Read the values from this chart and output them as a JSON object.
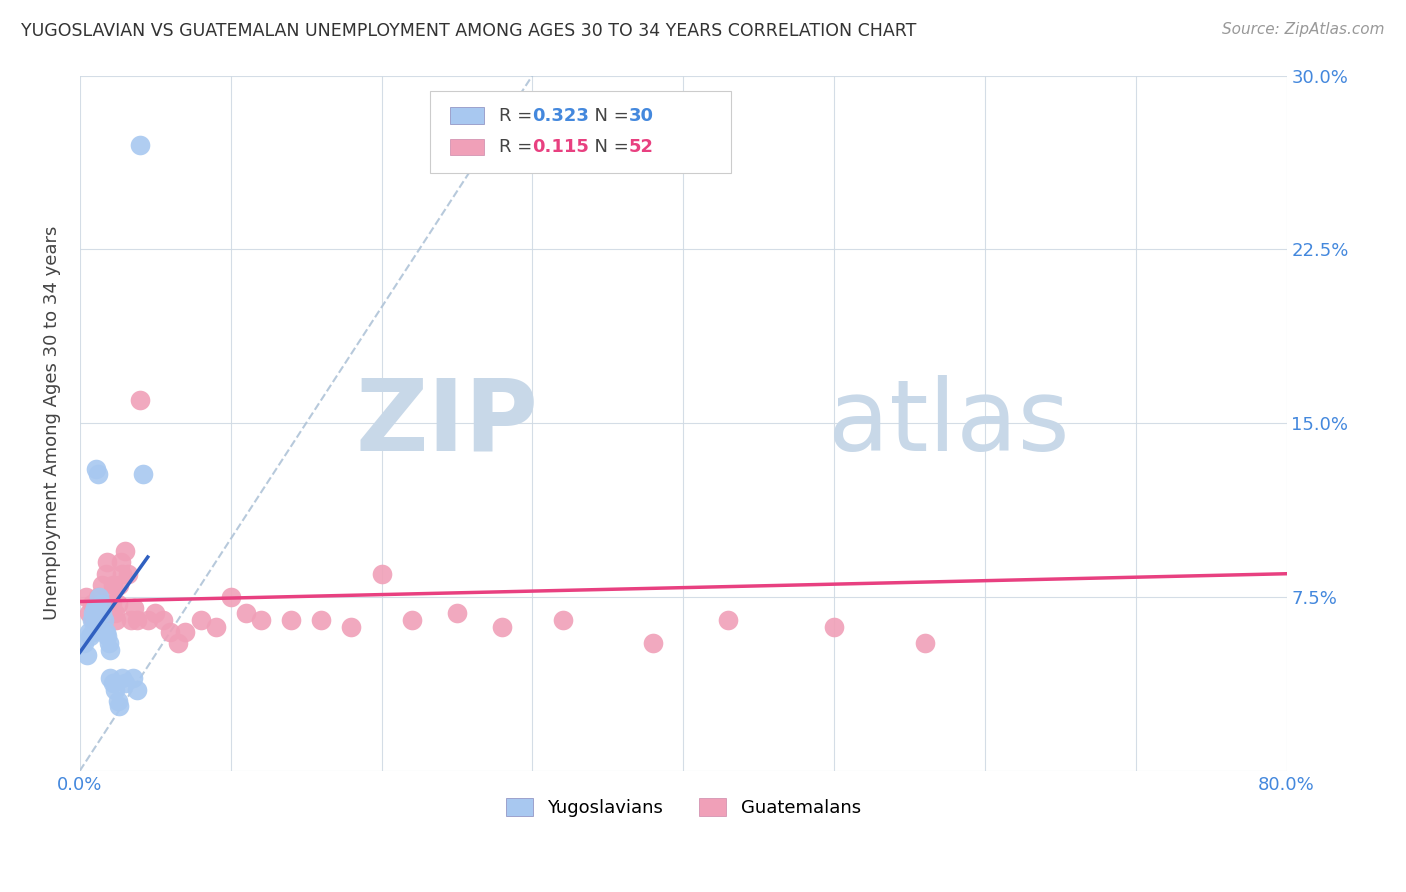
{
  "title": "YUGOSLAVIAN VS GUATEMALAN UNEMPLOYMENT AMONG AGES 30 TO 34 YEARS CORRELATION CHART",
  "source": "Source: ZipAtlas.com",
  "ylabel": "Unemployment Among Ages 30 to 34 years",
  "xlim": [
    0.0,
    0.8
  ],
  "ylim": [
    0.0,
    0.3
  ],
  "xticks": [
    0.0,
    0.1,
    0.2,
    0.3,
    0.4,
    0.5,
    0.6,
    0.7,
    0.8
  ],
  "xticklabels": [
    "0.0%",
    "",
    "",
    "",
    "",
    "",
    "",
    "",
    "80.0%"
  ],
  "yticks": [
    0.0,
    0.075,
    0.15,
    0.225,
    0.3
  ],
  "yticklabels": [
    "",
    "7.5%",
    "15.0%",
    "22.5%",
    "30.0%"
  ],
  "R_yugo": 0.323,
  "N_yugo": 30,
  "R_guate": 0.115,
  "N_guate": 52,
  "yugo_color": "#a8c8f0",
  "guate_color": "#f0a0b8",
  "yugo_line_color": "#3060c0",
  "guate_line_color": "#e84080",
  "dashed_line_color": "#b0c4d8",
  "bottom_legend_yugo": "Yugoslavians",
  "bottom_legend_guate": "Guatemalans",
  "yugo_x": [
    0.003,
    0.005,
    0.006,
    0.007,
    0.008,
    0.009,
    0.009,
    0.01,
    0.01,
    0.011,
    0.012,
    0.013,
    0.014,
    0.015,
    0.016,
    0.017,
    0.018,
    0.019,
    0.02,
    0.02,
    0.022,
    0.023,
    0.025,
    0.026,
    0.028,
    0.03,
    0.035,
    0.038,
    0.04,
    0.042
  ],
  "yugo_y": [
    0.055,
    0.05,
    0.06,
    0.058,
    0.065,
    0.06,
    0.068,
    0.07,
    0.065,
    0.13,
    0.128,
    0.075,
    0.072,
    0.068,
    0.065,
    0.06,
    0.058,
    0.055,
    0.052,
    0.04,
    0.038,
    0.035,
    0.03,
    0.028,
    0.04,
    0.038,
    0.04,
    0.035,
    0.27,
    0.128
  ],
  "guate_x": [
    0.004,
    0.006,
    0.008,
    0.009,
    0.01,
    0.011,
    0.012,
    0.013,
    0.014,
    0.015,
    0.016,
    0.017,
    0.018,
    0.019,
    0.02,
    0.021,
    0.022,
    0.023,
    0.024,
    0.025,
    0.026,
    0.027,
    0.028,
    0.03,
    0.032,
    0.034,
    0.036,
    0.038,
    0.04,
    0.045,
    0.05,
    0.055,
    0.06,
    0.065,
    0.07,
    0.08,
    0.09,
    0.1,
    0.11,
    0.12,
    0.14,
    0.16,
    0.18,
    0.2,
    0.22,
    0.25,
    0.28,
    0.32,
    0.38,
    0.43,
    0.5,
    0.56
  ],
  "guate_y": [
    0.075,
    0.068,
    0.072,
    0.065,
    0.07,
    0.068,
    0.075,
    0.065,
    0.072,
    0.08,
    0.068,
    0.085,
    0.09,
    0.075,
    0.068,
    0.072,
    0.08,
    0.068,
    0.065,
    0.072,
    0.08,
    0.09,
    0.085,
    0.095,
    0.085,
    0.065,
    0.07,
    0.065,
    0.16,
    0.065,
    0.068,
    0.065,
    0.06,
    0.055,
    0.06,
    0.065,
    0.062,
    0.075,
    0.068,
    0.065,
    0.065,
    0.065,
    0.062,
    0.085,
    0.065,
    0.068,
    0.062,
    0.065,
    0.055,
    0.065,
    0.062,
    0.055
  ]
}
